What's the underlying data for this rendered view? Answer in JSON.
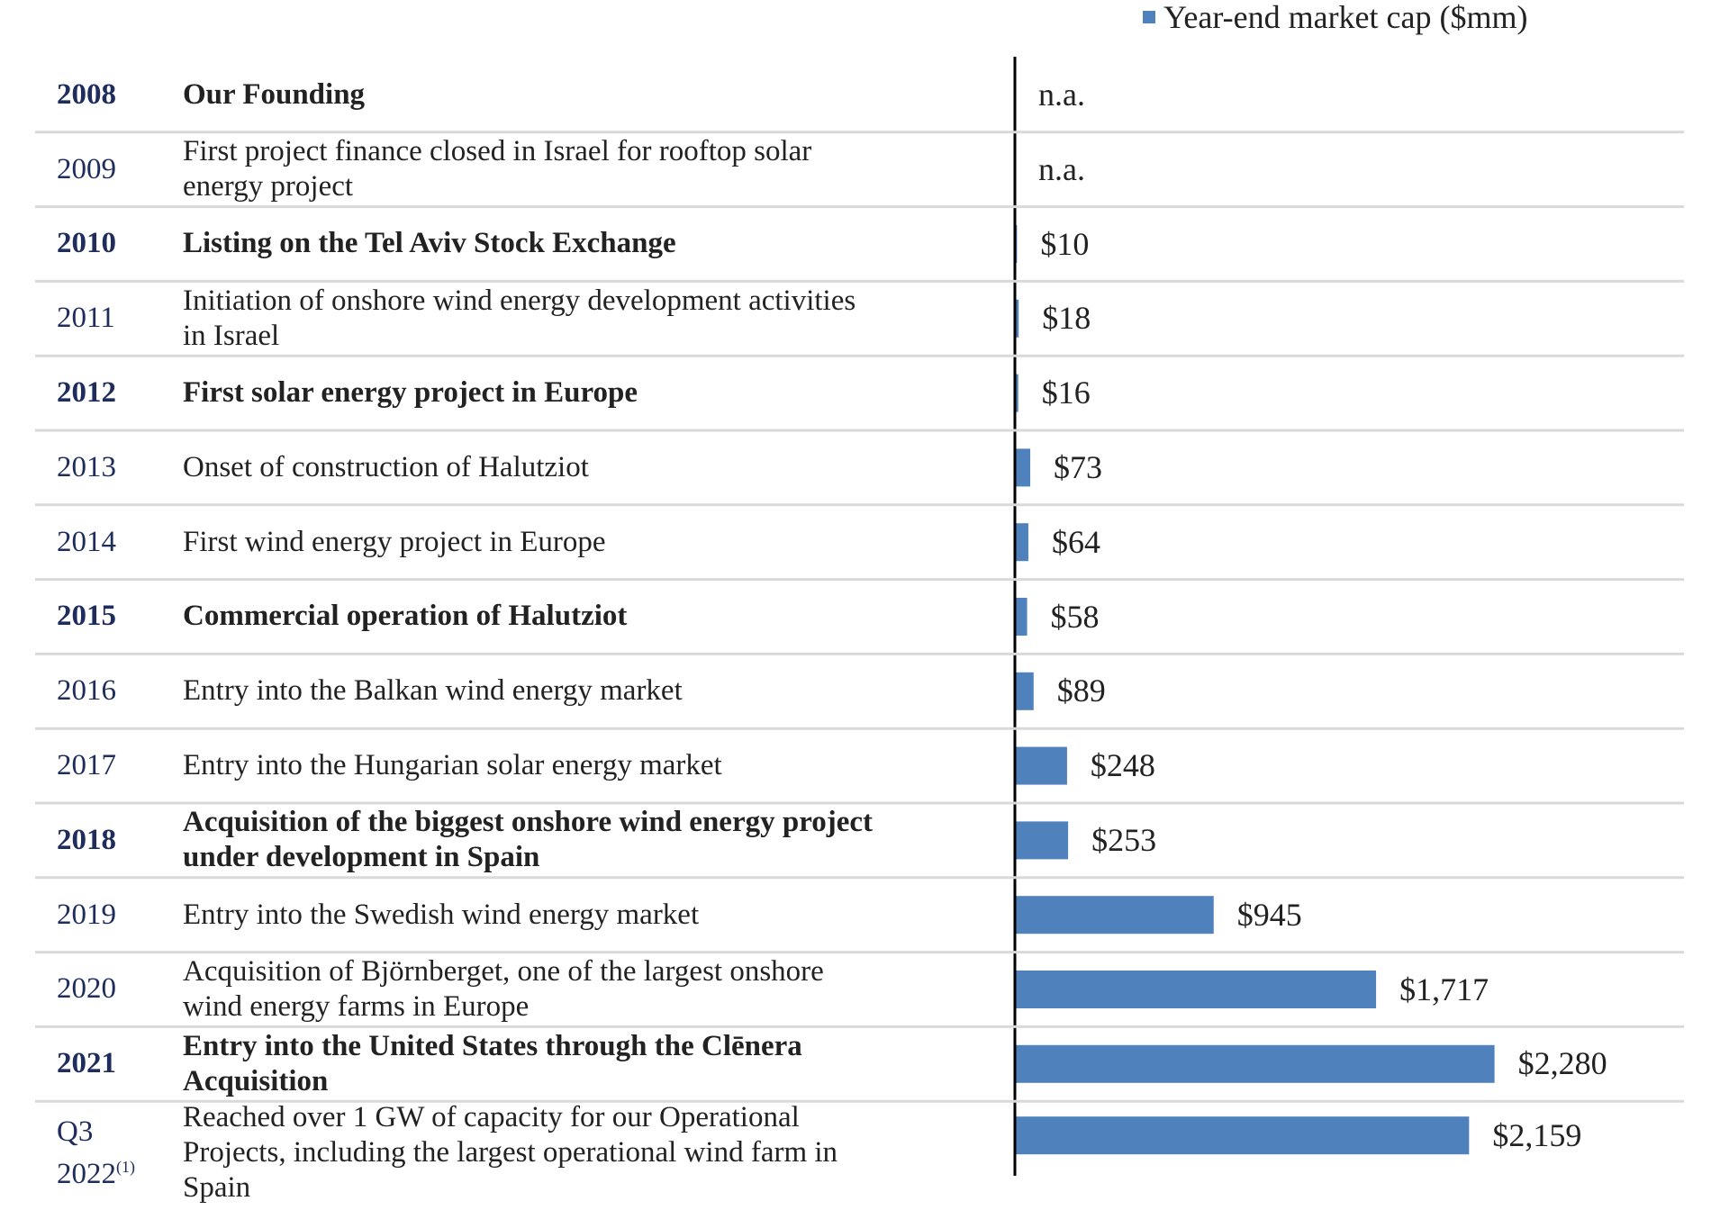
{
  "chart_data": {
    "type": "bar",
    "orientation": "horizontal",
    "categories": [
      "2008",
      "2009",
      "2010",
      "2011",
      "2012",
      "2013",
      "2014",
      "2015",
      "2016",
      "2017",
      "2018",
      "2019",
      "2020",
      "2021",
      "Q3 2022"
    ],
    "category_notes": [
      null,
      null,
      null,
      null,
      null,
      null,
      null,
      null,
      null,
      null,
      null,
      null,
      null,
      null,
      "(1)"
    ],
    "events": [
      "Our Founding",
      "First project finance closed in Israel for rooftop solar energy project",
      "Listing on the Tel Aviv Stock Exchange",
      "Initiation of onshore wind energy development activities in Israel",
      "First solar energy project in Europe",
      "Onset of construction of Halutziot",
      "First wind energy project in Europe",
      "Commercial operation of Halutziot",
      "Entry into the Balkan wind energy market",
      "Entry into the Hungarian solar energy market",
      "Acquisition of the biggest onshore wind energy project under development in Spain",
      "Entry into the Swedish wind energy market",
      "Acquisition of Björnberget, one of the largest onshore wind energy farms in Europe",
      "Entry into the United States through the Clēnera Acquisition",
      "Reached over 1 GW of capacity for our Operational Projects, including the largest operational wind farm in Spain"
    ],
    "bold_rows": [
      0,
      2,
      4,
      7,
      10,
      13
    ],
    "series": [
      {
        "name": "Year-end market cap ($mm)",
        "color": "#4f81bd",
        "values": [
          null,
          null,
          10,
          18,
          16,
          73,
          64,
          58,
          89,
          248,
          253,
          945,
          1717,
          2280,
          2159
        ],
        "value_labels": [
          "n.a.",
          "n.a.",
          "$10",
          "$18",
          "$16",
          "$73",
          "$64",
          "$58",
          "$89",
          "$248",
          "$253",
          "$945",
          "$1,717",
          "$2,280",
          "$2,159"
        ]
      }
    ],
    "xlim": [
      0,
      2500
    ],
    "legend": "top-right"
  }
}
